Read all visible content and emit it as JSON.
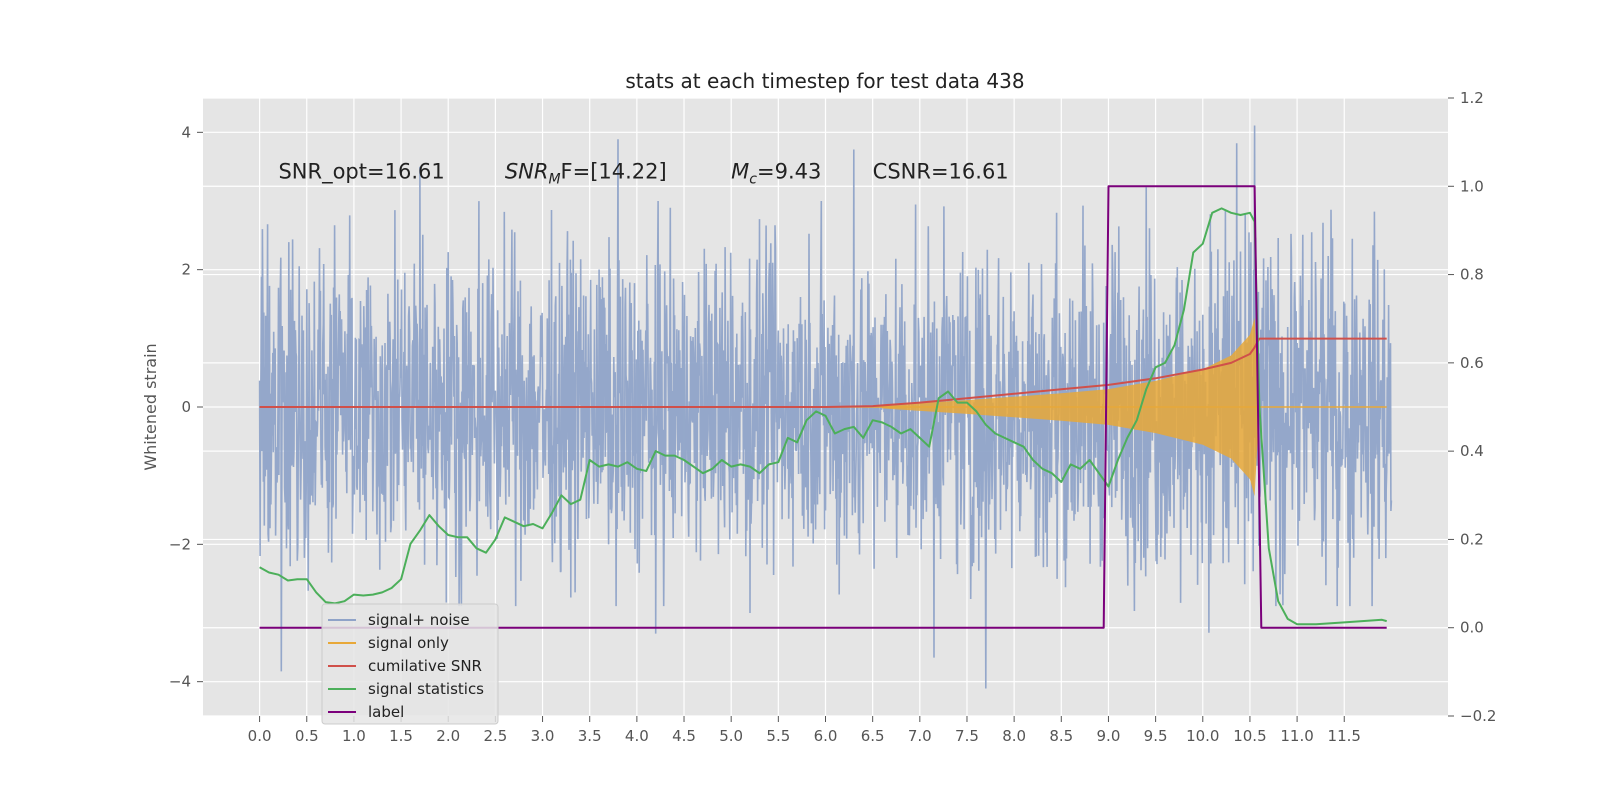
{
  "chart_data": {
    "type": "line",
    "title": "stats at each timestep for test data 438",
    "xlabel": "",
    "ylabel": "Whitened strain",
    "y2label": "",
    "xlim": [
      -0.6,
      12.6
    ],
    "ylim": [
      -4.5,
      4.5
    ],
    "y2lim": [
      -0.2,
      1.2
    ],
    "x_ticks": [
      "0.0",
      "0.5",
      "1.0",
      "1.5",
      "2.0",
      "2.5",
      "3.0",
      "3.5",
      "4.0",
      "4.5",
      "5.0",
      "5.5",
      "6.0",
      "6.5",
      "7.0",
      "7.5",
      "8.0",
      "8.5",
      "9.0",
      "9.5",
      "10.0",
      "10.5",
      "11.0",
      "11.5"
    ],
    "y_ticks": [
      -4,
      -2,
      0,
      2,
      4
    ],
    "y2_ticks": [
      -0.2,
      0.0,
      0.2,
      0.4,
      0.6,
      0.8,
      1.0,
      1.2
    ],
    "grid": true,
    "legend_position": "lower-left",
    "annotations": [
      {
        "text": "SNR_opt=16.61",
        "x": 0.2,
        "y": 3.3
      },
      {
        "text": "SNR_MF=[14.22]",
        "main": "SNR",
        "sub": "M",
        "rest": "F=[14.22]",
        "x": 2.6,
        "y": 3.3
      },
      {
        "text": "M_c=9.43",
        "main": "M",
        "sub": "c",
        "rest": "=9.43",
        "x": 5.0,
        "y": 3.3
      },
      {
        "text": "CSNR=16.61",
        "x": 6.5,
        "y": 3.3
      }
    ],
    "series": [
      {
        "name": "signal+ noise",
        "color": "#8fa3c8",
        "description": "noisy whitened strain, amplitude ~±2 with spikes",
        "spikes": [
          [
            1.7,
            3.5
          ],
          [
            3.8,
            3.9
          ],
          [
            4.2,
            -3.3
          ],
          [
            6.3,
            3.75
          ],
          [
            7.15,
            -3.65
          ],
          [
            7.7,
            -4.1
          ],
          [
            0.23,
            -3.85
          ],
          [
            10.55,
            4.1
          ],
          [
            5.2,
            -3.0
          ],
          [
            9.4,
            3.2
          ]
        ]
      },
      {
        "name": "signal only",
        "color": "#e8a838",
        "envelope": {
          "x": [
            6.6,
            7.5,
            8.5,
            9.0,
            9.5,
            10.0,
            10.3,
            10.5,
            10.55,
            10.6
          ],
          "half_amp": [
            0.02,
            0.1,
            0.2,
            0.26,
            0.38,
            0.55,
            0.75,
            1.05,
            1.3,
            0.0
          ]
        }
      },
      {
        "name": "cumilative SNR",
        "color": "#d0504a",
        "axis": "right",
        "x": [
          0.0,
          6.0,
          6.5,
          7.0,
          7.5,
          8.0,
          8.5,
          9.0,
          9.5,
          10.0,
          10.3,
          10.5,
          10.55,
          10.6,
          11.95
        ],
        "y": [
          0.5,
          0.5,
          0.502,
          0.51,
          0.52,
          0.53,
          0.54,
          0.55,
          0.565,
          0.585,
          0.6,
          0.62,
          0.635,
          0.655,
          0.655
        ]
      },
      {
        "name": "signal statistics",
        "color": "#4caf5a",
        "axis": "right",
        "x": [
          0.0,
          0.1,
          0.2,
          0.3,
          0.4,
          0.5,
          0.6,
          0.7,
          0.8,
          0.9,
          1.0,
          1.1,
          1.2,
          1.3,
          1.4,
          1.5,
          1.6,
          1.7,
          1.8,
          1.9,
          2.0,
          2.1,
          2.2,
          2.3,
          2.4,
          2.5,
          2.6,
          2.7,
          2.8,
          2.9,
          3.0,
          3.1,
          3.2,
          3.3,
          3.4,
          3.5,
          3.6,
          3.7,
          3.8,
          3.9,
          4.0,
          4.1,
          4.2,
          4.3,
          4.4,
          4.5,
          4.6,
          4.7,
          4.8,
          4.9,
          5.0,
          5.1,
          5.2,
          5.3,
          5.4,
          5.5,
          5.6,
          5.7,
          5.8,
          5.9,
          6.0,
          6.1,
          6.2,
          6.3,
          6.4,
          6.5,
          6.6,
          6.7,
          6.8,
          6.9,
          7.0,
          7.1,
          7.2,
          7.3,
          7.4,
          7.5,
          7.6,
          7.7,
          7.8,
          7.9,
          8.0,
          8.1,
          8.2,
          8.3,
          8.4,
          8.5,
          8.6,
          8.7,
          8.8,
          8.9,
          9.0,
          9.1,
          9.2,
          9.3,
          9.4,
          9.5,
          9.6,
          9.7,
          9.8,
          9.9,
          10.0,
          10.1,
          10.2,
          10.3,
          10.4,
          10.5,
          10.55,
          10.6,
          10.7,
          10.8,
          10.9,
          11.0,
          11.2,
          11.5,
          11.9,
          11.95
        ],
        "y": [
          0.137,
          0.125,
          0.12,
          0.107,
          0.11,
          0.11,
          0.08,
          0.058,
          0.055,
          0.06,
          0.075,
          0.073,
          0.075,
          0.08,
          0.09,
          0.11,
          0.19,
          0.22,
          0.255,
          0.23,
          0.21,
          0.205,
          0.205,
          0.18,
          0.17,
          0.2,
          0.25,
          0.24,
          0.23,
          0.235,
          0.225,
          0.26,
          0.3,
          0.28,
          0.29,
          0.38,
          0.365,
          0.37,
          0.365,
          0.375,
          0.36,
          0.355,
          0.4,
          0.39,
          0.39,
          0.38,
          0.365,
          0.35,
          0.36,
          0.38,
          0.365,
          0.37,
          0.365,
          0.35,
          0.37,
          0.375,
          0.43,
          0.42,
          0.47,
          0.49,
          0.48,
          0.44,
          0.45,
          0.455,
          0.43,
          0.47,
          0.465,
          0.455,
          0.44,
          0.45,
          0.43,
          0.41,
          0.52,
          0.535,
          0.51,
          0.51,
          0.49,
          0.46,
          0.44,
          0.43,
          0.42,
          0.41,
          0.38,
          0.36,
          0.35,
          0.33,
          0.37,
          0.36,
          0.38,
          0.35,
          0.32,
          0.38,
          0.43,
          0.47,
          0.54,
          0.59,
          0.6,
          0.64,
          0.72,
          0.85,
          0.87,
          0.94,
          0.95,
          0.94,
          0.935,
          0.94,
          0.92,
          0.5,
          0.18,
          0.06,
          0.02,
          0.008,
          0.008,
          0.012,
          0.018,
          0.015
        ]
      },
      {
        "name": "label",
        "color": "#7b007b",
        "axis": "right",
        "x": [
          0.0,
          8.95,
          9.0,
          10.55,
          10.62,
          11.95
        ],
        "y": [
          0.0,
          0.0,
          1.0,
          1.0,
          0.0,
          0.0
        ]
      }
    ]
  }
}
